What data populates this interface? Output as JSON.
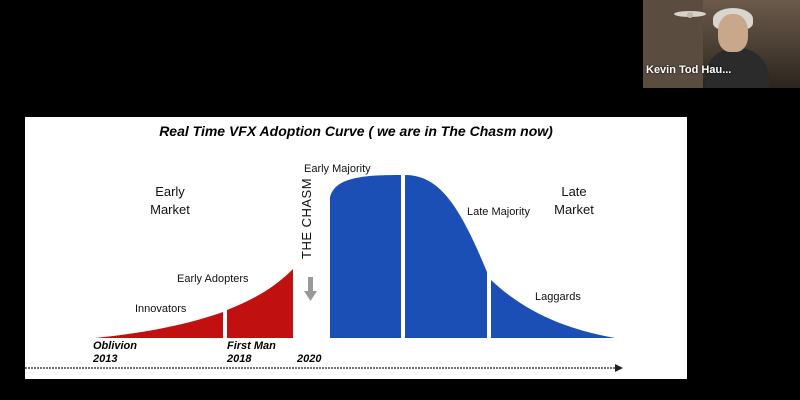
{
  "slide": {
    "title": "Real Time VFX Adoption Curve  ( we are in The Chasm now)",
    "left_heading": "Early\nMarket",
    "right_heading": "Late\nMarket",
    "chasm_label": "THE CHASM",
    "segments": [
      "Innovators",
      "Early Adopters",
      "Early Majority",
      "Late Majority",
      "Laggards"
    ],
    "markers": [
      {
        "label": "Oblivion",
        "year": "2013"
      },
      {
        "label": "First Man",
        "year": "2018"
      },
      {
        "label": "",
        "year": "2020"
      }
    ],
    "colors": {
      "early": "#c01010",
      "late": "#1c4fb5",
      "chasm_arrow": "#999999"
    }
  },
  "participant": {
    "name": "Kevin Tod Hau..."
  }
}
